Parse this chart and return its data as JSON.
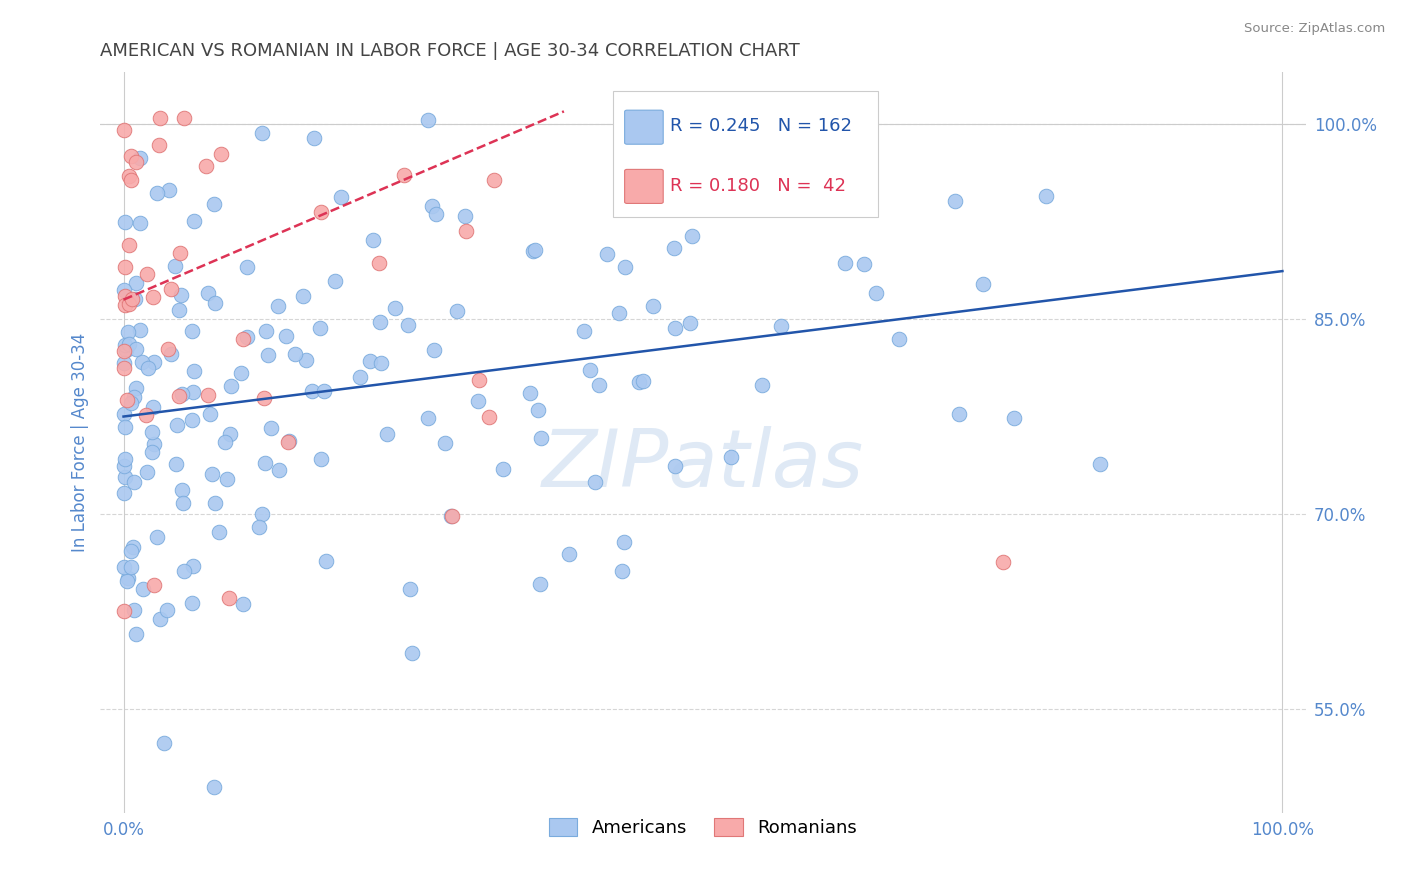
{
  "title": "AMERICAN VS ROMANIAN IN LABOR FORCE | AGE 30-34 CORRELATION CHART",
  "source": "Source: ZipAtlas.com",
  "ylabel": "In Labor Force | Age 30-34",
  "xlim": [
    -0.02,
    1.02
  ],
  "ylim": [
    0.47,
    1.04
  ],
  "x_ticks": [
    0.0,
    1.0
  ],
  "x_tick_labels": [
    "0.0%",
    "100.0%"
  ],
  "y_tick_labels": [
    "55.0%",
    "70.0%",
    "85.0%",
    "100.0%"
  ],
  "y_ticks": [
    0.55,
    0.7,
    0.85,
    1.0
  ],
  "legend_r_american": "0.245",
  "legend_n_american": "162",
  "legend_r_romanian": "0.180",
  "legend_n_romanian": " 42",
  "american_color": "#aac8f0",
  "american_edge": "#7aabdd",
  "romanian_color": "#f8aaaa",
  "romanian_edge": "#e07777",
  "trendline_american_color": "#2255aa",
  "trendline_romanian_color": "#dd3355",
  "watermark_color": "#c5d8ee",
  "background_color": "#ffffff",
  "grid_color": "#cccccc",
  "title_color": "#444444",
  "tick_color": "#5588cc",
  "american_n": 162,
  "romanian_n": 42,
  "trendline_am_x0": 0.0,
  "trendline_am_y0": 0.775,
  "trendline_am_x1": 1.0,
  "trendline_am_y1": 0.887,
  "trendline_ro_x0": 0.0,
  "trendline_ro_y0": 0.865,
  "trendline_ro_x1": 0.38,
  "trendline_ro_y1": 1.01
}
